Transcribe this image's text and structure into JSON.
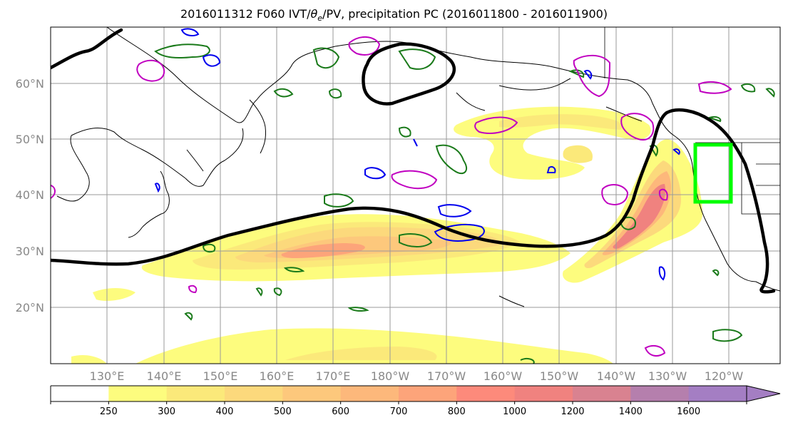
{
  "title": {
    "prefix": "2016011312 F060 IVT/",
    "theta": "θ",
    "theta_sub": "e",
    "suffix": "/PV, precipitation PC (2016011800 - 2016011900)"
  },
  "lat_labels": [
    "60°N",
    "50°N",
    "40°N",
    "30°N",
    "20°N"
  ],
  "lon_labels": [
    "130°E",
    "140°E",
    "150°E",
    "160°E",
    "170°E",
    "180°W",
    "170°W",
    "160°W",
    "150°W",
    "140°W",
    "130°W",
    "120°W"
  ],
  "colorbar": {
    "ticks": [
      "250",
      "300",
      "400",
      "500",
      "600",
      "700",
      "800",
      "1000",
      "1200",
      "1400",
      "1600"
    ],
    "colors": [
      "#ffffff",
      "#fdfc7e",
      "#fbe97a",
      "#fcd97c",
      "#fdc87c",
      "#fdb87b",
      "#fda47a",
      "#fd8a7b",
      "#f0827f",
      "#d98290",
      "#b57fad",
      "#a47ec3"
    ]
  },
  "contour_colors": {
    "theta_e_jet": "#000000",
    "pv": "#c000c0",
    "precip_pc_green": "#1a7a1a",
    "precip_pc_blue": "#0000ee",
    "target_box": "#00ff00"
  }
}
